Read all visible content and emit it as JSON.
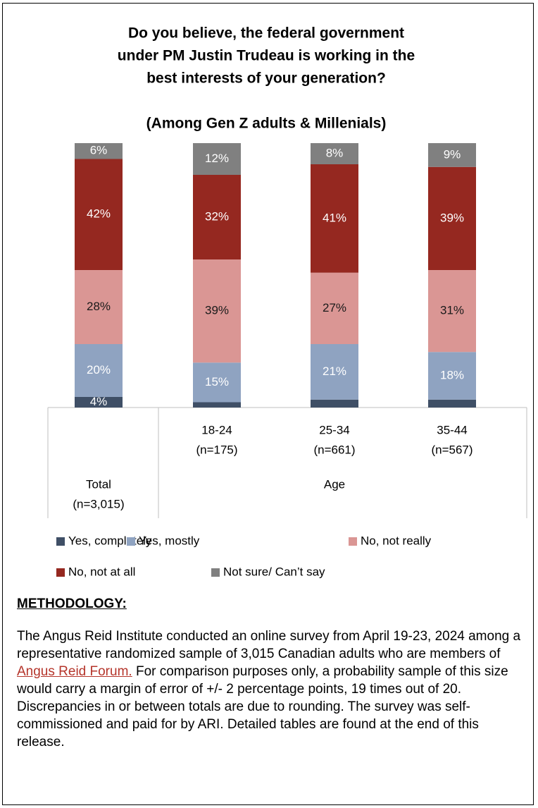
{
  "chart_data": {
    "type": "stacked_bar",
    "title": [
      "Do you believe, the federal government",
      "under PM Justin Trudeau is working in the",
      "best interests of your generation?"
    ],
    "subtitle": "(Among Gen Z adults & Millenials)",
    "categories": [
      [
        "Total",
        "(n=3,015)"
      ],
      [
        "18-24",
        "(n=175)"
      ],
      [
        "25-34",
        "(n=661)"
      ],
      [
        "35-44",
        "(n=567)"
      ]
    ],
    "group_label": "Age",
    "ylim": [
      0,
      100
    ],
    "series": [
      {
        "name": "Yes, completely",
        "color": "#3f4f66",
        "label_color": "#ffffff",
        "values": [
          4,
          2,
          3,
          3
        ],
        "value_labels": [
          "4%",
          null,
          null,
          null
        ]
      },
      {
        "name": "Yes, mostly",
        "color": "#8fa3c1",
        "label_color": "#ffffff",
        "values": [
          20,
          15,
          21,
          18
        ],
        "value_labels": [
          "20%",
          "15%",
          "21%",
          "18%"
        ]
      },
      {
        "name": "No, not really",
        "color": "#da9694",
        "label_color": "#1a1a1a",
        "values": [
          28,
          39,
          27,
          31
        ],
        "value_labels": [
          "28%",
          "39%",
          "27%",
          "31%"
        ]
      },
      {
        "name": "No, not at all",
        "color": "#952820",
        "label_color": "#ffffff",
        "values": [
          42,
          32,
          41,
          39
        ],
        "value_labels": [
          "42%",
          "32%",
          "41%",
          "39%"
        ]
      },
      {
        "name": "Not sure/ Can’t say",
        "color": "#808080",
        "label_color": "#ffffff",
        "values": [
          6,
          12,
          8,
          9
        ],
        "value_labels": [
          "6%",
          "12%",
          "8%",
          "9%"
        ]
      }
    ]
  },
  "methodology": {
    "heading": "METHODOLOGY:",
    "text_before": "The Angus Reid Institute conducted an online survey from April 19-23, 2024 among a representative randomized sample of 3,015 Canadian adults who are members of ",
    "link": "Angus Reid Forum.",
    "text_after": " For comparison purposes only, a probability sample of this size would carry a margin of error of +/- 2 percentage points, 19 times out of 20. Discrepancies in or between totals are due to rounding. The survey was self-commissioned and paid for by ARI. Detailed tables are found at the end of this release."
  }
}
